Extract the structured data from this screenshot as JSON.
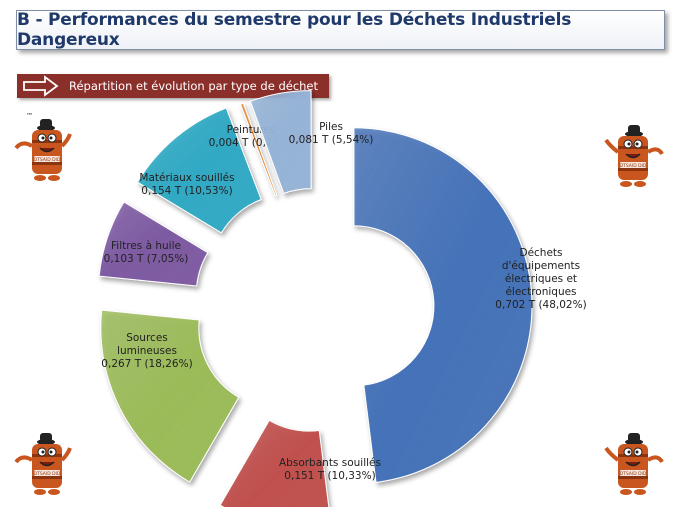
{
  "header": {
    "title": "B - Performances du semestre pour les Déchets Industriels Dangereux"
  },
  "banner": {
    "text": "Répartition et évolution par type de déchet",
    "color": "#8b2f2b",
    "icon": "arrow-right-outline-icon"
  },
  "mascot": {
    "text": "DTSAID DID",
    "mark": "™",
    "icon": "barrel-mascot-icon"
  },
  "chart_data": {
    "type": "pie",
    "style": "exploded-donut",
    "unit": "T",
    "slices": [
      {
        "label": "Déchets d'équipements électriques et électroniques",
        "label_lines": [
          "Déchets",
          "d'équipements",
          "électriques et",
          "électroniques"
        ],
        "value": 0.702,
        "value_text": "0,702 T (48,02%)",
        "percent": 48.02,
        "color": "#4572b8"
      },
      {
        "label": "Absorbants souillés",
        "label_lines": [
          "Absorbants souillés"
        ],
        "value": 0.151,
        "value_text": "0,151 T (10,33%)",
        "percent": 10.33,
        "color": "#c0504d"
      },
      {
        "label": "Sources lumineuses",
        "label_lines": [
          "Sources",
          "lumineuses"
        ],
        "value": 0.267,
        "value_text": "0,267 T (18,26%)",
        "percent": 18.26,
        "color": "#9bbb59"
      },
      {
        "label": "Filtres à huile",
        "label_lines": [
          "Filtres à huile"
        ],
        "value": 0.103,
        "value_text": "0,103 T (7,05%)",
        "percent": 7.05,
        "color": "#7e5aa2"
      },
      {
        "label": "Matériaux souillés",
        "label_lines": [
          "Matériaux souillés"
        ],
        "value": 0.154,
        "value_text": "0,154 T (10,53%)",
        "percent": 10.53,
        "color": "#31a9c4"
      },
      {
        "label": "Peintures",
        "label_lines": [
          "Peintures"
        ],
        "value": 0.004,
        "value_text": "0,004 T (0,27%)",
        "percent": 0.27,
        "color": "#e6862e"
      },
      {
        "label": "Piles",
        "label_lines": [
          "Piles"
        ],
        "value": 0.081,
        "value_text": "0,081 T (5,54%)",
        "percent": 5.54,
        "color": "#95b3d7"
      }
    ]
  }
}
